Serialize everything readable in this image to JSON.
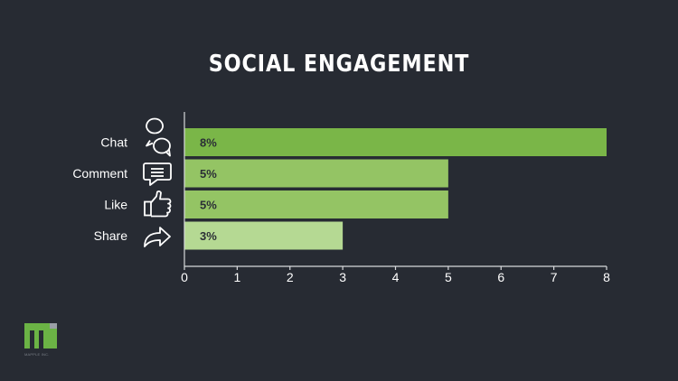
{
  "chart_data": {
    "type": "bar",
    "orientation": "horizontal",
    "title": "SOCIAL ENGAGEMENT",
    "categories": [
      "Chat",
      "Comment",
      "Like",
      "Share"
    ],
    "values": [
      8,
      5,
      5,
      3
    ],
    "value_labels": [
      "8%",
      "5%",
      "5%",
      "3%"
    ],
    "icons": [
      "chat-bubbles-icon",
      "comment-icon",
      "thumbs-up-icon",
      "share-arrow-icon"
    ],
    "bar_colors": [
      "#7ab648",
      "#94c464",
      "#94c464",
      "#b5d993"
    ],
    "xlim": [
      0,
      8
    ],
    "xticks": [
      "0",
      "1",
      "2",
      "3",
      "4",
      "5",
      "6",
      "7",
      "8"
    ],
    "grid": false,
    "legend": "none"
  },
  "colors": {
    "background": "#272b33",
    "axis": "#d7d9dc",
    "text": "#ffffff",
    "value_label": "#2b2f36"
  },
  "brand": {
    "logo_icon": "mapple-logo-icon",
    "caption": "MAPPLE INC."
  }
}
